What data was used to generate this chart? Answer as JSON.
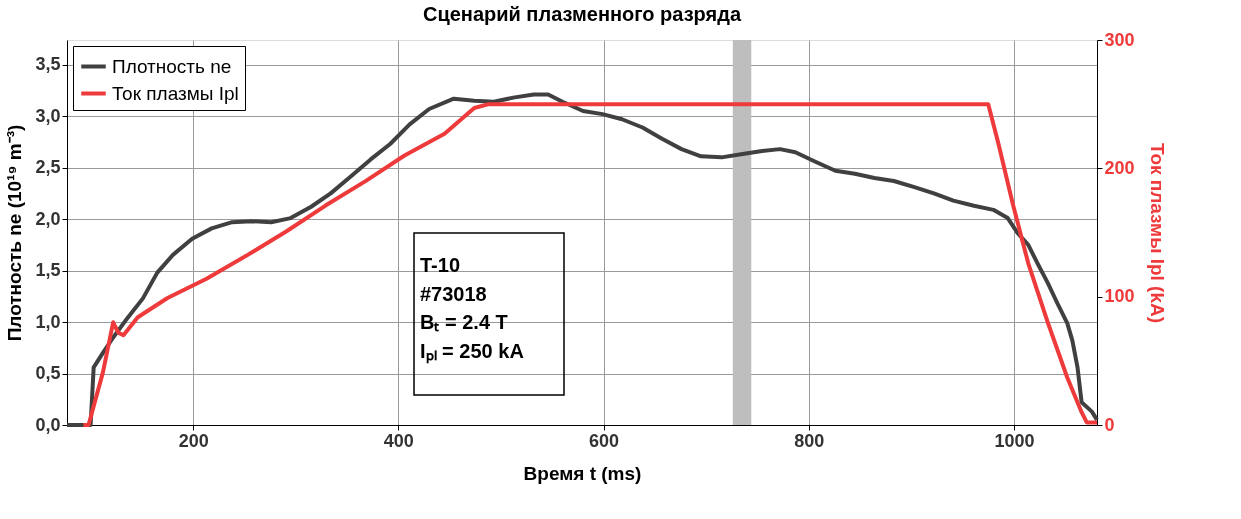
{
  "chart_data": {
    "type": "line",
    "title": "Сценарий плазменного разряда",
    "xlabel": "Время t (ms)",
    "ylabel": "Плотность ne (10¹⁹ m⁻³)",
    "y2label": "Ток плазмы Ipl (kA)",
    "xlim": [
      77,
      1081
    ],
    "xticks": [
      200,
      400,
      600,
      800,
      1000
    ],
    "ylim": [
      0,
      3.74
    ],
    "yticks": [
      {
        "value": 0,
        "label": "0,0"
      },
      {
        "value": 0.5,
        "label": "0,5"
      },
      {
        "value": 1,
        "label": "1,0"
      },
      {
        "value": 1.5,
        "label": "1,5"
      },
      {
        "value": 2,
        "label": "2,0"
      },
      {
        "value": 2.5,
        "label": "2,5"
      },
      {
        "value": 3,
        "label": "3,0"
      },
      {
        "value": 3.5,
        "label": "3,5"
      }
    ],
    "y2lim": [
      0,
      300
    ],
    "y2ticks": [
      0,
      100,
      200,
      300
    ],
    "grid": true,
    "legend": "top left",
    "line_style": "solid",
    "marker": "none",
    "bands": [
      {
        "axis": "x",
        "from": 726,
        "to": 744,
        "color": "#bebebe"
      }
    ],
    "annotations": [
      "T-10",
      "#73018",
      "Bₜ = 2.4 T",
      "Iₚₗ = 250 kA"
    ],
    "series": [
      {
        "name": "Плотность ne",
        "color": "#404040",
        "x": [
          77,
          96,
          100,
          103,
          112,
          122,
          136,
          151,
          165,
          180,
          199,
          218,
          238,
          257,
          276,
          295,
          315,
          334,
          353,
          373,
          392,
          411,
          430,
          454,
          474,
          493,
          512,
          532,
          546,
          560,
          580,
          599,
          618,
          638,
          657,
          676,
          695,
          715,
          734,
          753,
          772,
          787,
          806,
          826,
          845,
          864,
          883,
          903,
          922,
          941,
          961,
          980,
          994,
          1004,
          1014,
          1023,
          1033,
          1042,
          1052,
          1057,
          1062,
          1066,
          1076,
          1081
        ],
        "values": [
          0,
          0,
          0,
          0.56,
          0.7,
          0.85,
          1.04,
          1.23,
          1.48,
          1.65,
          1.81,
          1.91,
          1.97,
          1.98,
          1.97,
          2.01,
          2.12,
          2.25,
          2.41,
          2.58,
          2.73,
          2.92,
          3.07,
          3.17,
          3.15,
          3.14,
          3.18,
          3.21,
          3.21,
          3.14,
          3.05,
          3.02,
          2.97,
          2.89,
          2.78,
          2.68,
          2.61,
          2.6,
          2.63,
          2.66,
          2.68,
          2.65,
          2.56,
          2.47,
          2.44,
          2.4,
          2.37,
          2.31,
          2.25,
          2.18,
          2.13,
          2.09,
          2.01,
          1.86,
          1.75,
          1.57,
          1.38,
          1.19,
          0.99,
          0.82,
          0.56,
          0.22,
          0.13,
          0.05
        ]
      },
      {
        "name": "Ток плазмы Ipl",
        "color": "#ee3a3a",
        "axis": "y2",
        "x": [
          93,
          98,
          112,
          122,
          127,
          132,
          146,
          175,
          213,
          252,
          291,
          329,
          368,
          406,
          445,
          474,
          488,
          550,
          650,
          750,
          850,
          950,
          975,
          985,
          999,
          1014,
          1033,
          1052,
          1066,
          1071,
          1081
        ],
        "values": [
          0,
          0,
          41,
          80,
          72,
          70,
          84,
          99,
          114,
          132,
          151,
          171,
          190,
          210,
          227,
          247,
          250,
          250,
          250,
          250,
          250,
          250,
          250,
          219,
          172,
          126,
          80,
          37,
          10,
          2,
          2
        ]
      }
    ]
  }
}
